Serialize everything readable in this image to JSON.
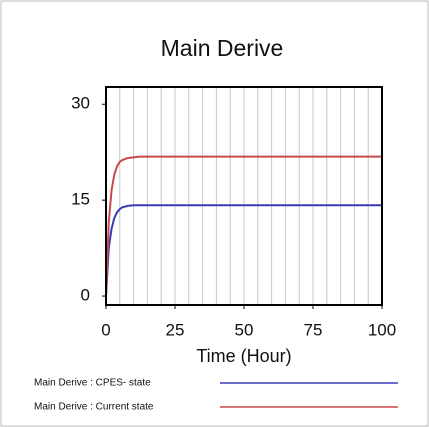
{
  "chart_data": {
    "type": "line",
    "title": "Main Derive",
    "xlabel": "Time (Hour)",
    "x": [
      0,
      1,
      2,
      3,
      4,
      5,
      6,
      8,
      10,
      12,
      15,
      20,
      30,
      50,
      75,
      100
    ],
    "series": [
      {
        "name": "Main Derive : CPES- state",
        "color": "#3a3ab8",
        "values": [
          0,
          7.5,
          10.5,
          12.2,
          13.1,
          13.6,
          13.9,
          14.1,
          14.2,
          14.2,
          14.2,
          14.2,
          14.2,
          14.2,
          14.2,
          14.2
        ]
      },
      {
        "name": "Main Derive : Current state",
        "color": "#c84a4a",
        "values": [
          0,
          11.5,
          16.5,
          19.0,
          20.3,
          21.0,
          21.3,
          21.6,
          21.7,
          21.8,
          21.8,
          21.8,
          21.8,
          21.8,
          21.8,
          21.8
        ]
      }
    ],
    "xlim": [
      0,
      100
    ],
    "xticks": [
      0,
      25,
      50,
      75,
      100
    ],
    "ylim": [
      -1.4,
      32.7
    ],
    "yticks": [
      0,
      15,
      30
    ],
    "vertical_grid_step": 5,
    "grid": true
  }
}
